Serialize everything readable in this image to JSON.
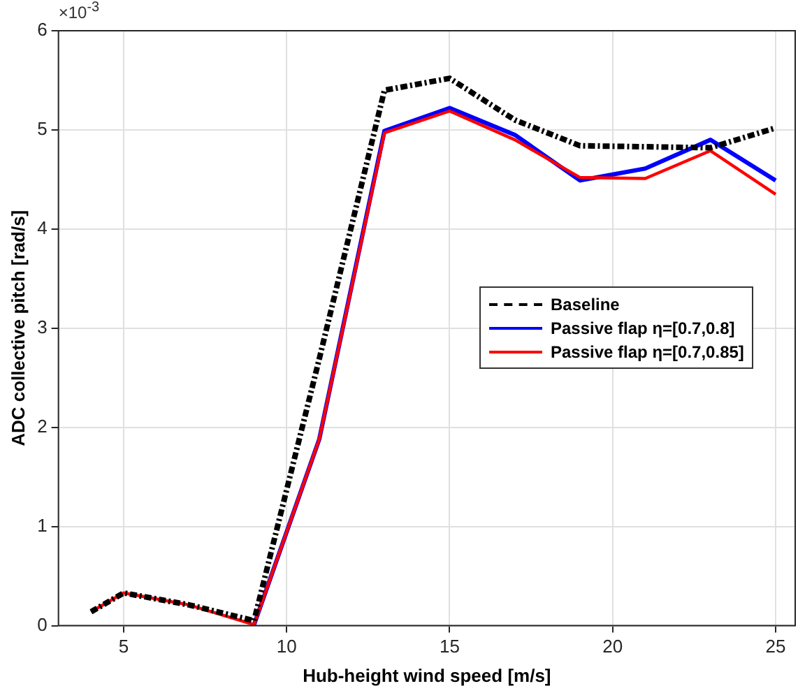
{
  "chart_data": {
    "type": "line",
    "xlabel": "Hub-height wind speed [m/s]",
    "ylabel": "ADC collective pitch [rad/s]",
    "annotations": [
      "×10$^{-3}$"
    ],
    "xlim": [
      3,
      25.6
    ],
    "xticks": [
      5,
      10,
      15,
      20,
      25
    ],
    "ylim": [
      0,
      6
    ],
    "yticks": [
      0,
      1,
      2,
      3,
      4,
      5,
      6
    ],
    "grid": true,
    "legend": "right",
    "marker": "none",
    "x": [
      4,
      5,
      7,
      9,
      11,
      13,
      15,
      17,
      19,
      21,
      23,
      25
    ],
    "series": [
      {
        "name": "Baseline",
        "color": "#000000",
        "line_style": "dashed",
        "values": [
          0.14,
          0.33,
          0.21,
          0.05,
          2.69,
          5.4,
          5.52,
          5.1,
          4.84,
          4.83,
          4.82,
          5.02
        ]
      },
      {
        "name": "Passive flap η=[0.7,0.8]",
        "color": "#0000ff",
        "line_style": "solid",
        "values": [
          null,
          null,
          null,
          0.01,
          1.88,
          4.99,
          5.22,
          4.95,
          4.49,
          4.61,
          4.9,
          4.49
        ]
      },
      {
        "name": "Passive flap η=[0.7,0.85]",
        "color": "#ff0000",
        "line_style": "solid",
        "values": [
          0.14,
          0.33,
          0.21,
          0.01,
          1.88,
          4.97,
          5.19,
          4.9,
          4.52,
          4.51,
          4.79,
          4.35
        ]
      }
    ]
  }
}
